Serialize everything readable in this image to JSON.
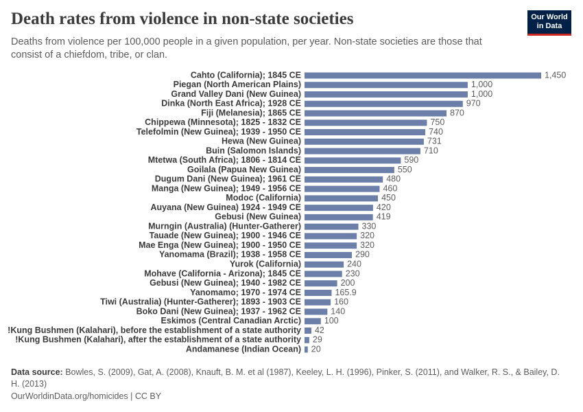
{
  "header": {
    "title": "Death rates from violence in non-state societies",
    "subtitle": "Deaths from violence per 100,000 people in a given population, per year. Non-state societies are those that consist of a chiefdom, tribe, or clan.",
    "logo_line1": "Our World",
    "logo_line2": "in Data"
  },
  "chart_data": {
    "type": "bar",
    "orientation": "horizontal",
    "color": "#6b7fa8",
    "categories": [
      "Cahto (California); 1845 CE",
      "Piegan (North American Plains)",
      "Grand Valley Dani (New Guinea)",
      "Dinka (North East Africa); 1928 CE",
      "Fiji (Melanesia); 1865 CE",
      "Chippewa (Minnesota); 1825 - 1832 CE",
      "Telefolmin (New Guinea); 1939 - 1950 CE",
      "Hewa (New Guinea)",
      "Buin (Salomon Islands)",
      "Mtetwa (South Africa); 1806 - 1814 CE",
      "Goilala (Papua New Guinea)",
      "Dugum Dani (New Guinea); 1961 CE",
      "Manga (New Guinea); 1949 - 1956 CE",
      "Modoc (California)",
      "Auyana (New Guinea) 1924 - 1949 CE",
      "Gebusi (New Guinea)",
      "Murngin (Australia) (Hunter-Gatherer)",
      "Tauade (New Guinea); 1900 - 1946 CE",
      "Mae Enga (New Guinea); 1900 - 1950 CE",
      "Yanomama (Brazil); 1938 - 1958 CE",
      "Yurok (California)",
      "Mohave (California - Arizona); 1845 CE",
      "Gebusi (New Guinea); 1940 - 1982 CE",
      "Yanomamo; 1970 - 1974 CE",
      "Tiwi (Australia) (Hunter-Gatherer); 1893 - 1903 CE",
      "Boko Dani (New Guinea); 1937 - 1962 CE",
      "Eskimos (Central Canadian Arctic)",
      "!Kung Bushmen (Kalahari), before the establishment of a state authority",
      "!Kung Bushmen (Kalahari), after the establishment of a state authority",
      "Andamanese (Indian Ocean)"
    ],
    "values": [
      1450,
      1000,
      1000,
      970,
      870,
      750,
      740,
      731,
      710,
      590,
      550,
      480,
      460,
      450,
      420,
      419,
      330,
      320,
      320,
      290,
      240,
      230,
      200,
      165.9,
      160,
      140,
      100,
      42,
      29,
      20
    ],
    "value_labels": [
      "1,450",
      "1,000",
      "1,000",
      "970",
      "870",
      "750",
      "740",
      "731",
      "710",
      "590",
      "550",
      "480",
      "460",
      "450",
      "420",
      "419",
      "330",
      "320",
      "320",
      "290",
      "240",
      "230",
      "200",
      "165.9",
      "160",
      "140",
      "100",
      "42",
      "29",
      "20"
    ]
  },
  "footer": {
    "source_label": "Data source:",
    "source": "Bowles, S. (2009), Gat, A. (2008), Knauft, B. M. et al (1987), Keeley, L. H. (1996), Pinker, S. (2011), and Walker, R. S., & Bailey, D. H. (2013)",
    "url": "OurWorldinData.org/homicides | CC BY"
  }
}
